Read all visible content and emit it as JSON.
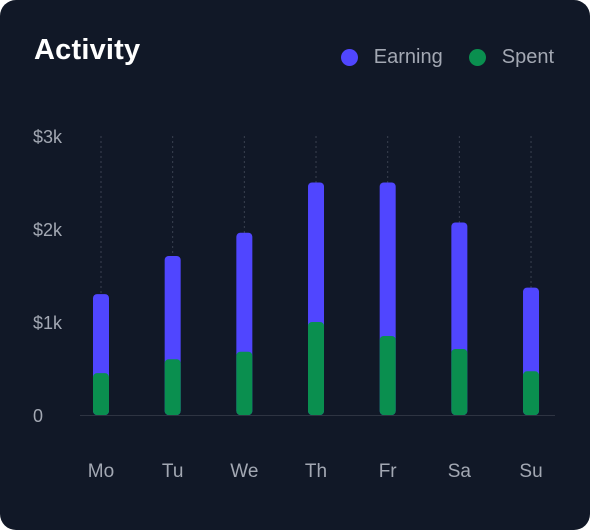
{
  "card": {
    "title": "Activity",
    "background": "#111827"
  },
  "legend": [
    {
      "label": "Earning",
      "color": "#5046ff"
    },
    {
      "label": "Spent",
      "color": "#0a8f4f"
    }
  ],
  "chart_data": {
    "type": "bar",
    "stacked": true,
    "title": "Activity",
    "categories": [
      "Mo",
      "Tu",
      "We",
      "Th",
      "Fr",
      "Sa",
      "Su"
    ],
    "series": [
      {
        "name": "Spent",
        "color": "#0a8f4f",
        "values": [
          450,
          600,
          680,
          1000,
          850,
          710,
          470
        ]
      },
      {
        "name": "Earning",
        "color": "#5046ff",
        "values": [
          850,
          1110,
          1280,
          1500,
          1650,
          1360,
          900
        ]
      }
    ],
    "y_ticks": [
      {
        "value": 0,
        "label": "0"
      },
      {
        "value": 1000,
        "label": "$1k"
      },
      {
        "value": 2000,
        "label": "$2k"
      },
      {
        "value": 3000,
        "label": "$3k"
      }
    ],
    "ylim": [
      0,
      3000
    ],
    "grid": "vertical dotted",
    "legend_position": "top-right"
  }
}
